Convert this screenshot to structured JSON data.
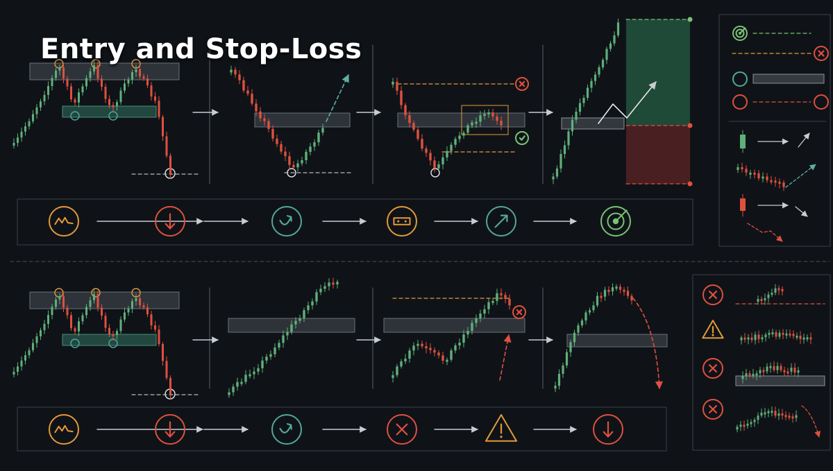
{
  "title": "Entry and Stop-Loss",
  "colors": {
    "background": "#0f1318",
    "bull": "#5fb07a",
    "bear": "#e0503f",
    "zone_fill": "#3a3f45",
    "support_zone": "#2e6b5a",
    "entry_line": "#e39a3a",
    "teal_icon": "#53a89a",
    "green_icon": "#7cc275",
    "target_fill": "#1f4a37",
    "stop_fill": "#4a1f22",
    "panel_border": "#3b4148",
    "arrow": "#c8cdd2"
  },
  "top_flow_icons": [
    {
      "name": "triple-top-icon",
      "color": "#e39a3a"
    },
    {
      "name": "down-arrow-icon",
      "color": "#e0503f"
    },
    {
      "name": "rebound-arrow-icon",
      "color": "#53a89a"
    },
    {
      "name": "range-box-icon",
      "color": "#e39a3a"
    },
    {
      "name": "up-arrow-icon",
      "color": "#53a89a"
    },
    {
      "name": "target-icon",
      "color": "#7cc275"
    }
  ],
  "bottom_flow_icons": [
    {
      "name": "triple-top-icon",
      "color": "#e39a3a"
    },
    {
      "name": "down-arrow-icon",
      "color": "#e0503f"
    },
    {
      "name": "rebound-arrow-icon",
      "color": "#53a89a"
    },
    {
      "name": "cross-icon",
      "color": "#e0503f"
    },
    {
      "name": "warning-icon",
      "color": "#e39a3a"
    },
    {
      "name": "down-arrow-icon",
      "color": "#e0503f"
    }
  ],
  "legend_top": [
    {
      "name": "target-icon",
      "line": "green-dashed"
    },
    {
      "name": "cross-icon",
      "line": "orange-dashed"
    },
    {
      "name": "teal-circle-icon",
      "line": "grey-bar"
    },
    {
      "name": "red-circle-icon",
      "line": "red-dashed"
    }
  ],
  "legend_bottom": [
    {
      "name": "cross-icon"
    },
    {
      "name": "warning-icon"
    },
    {
      "name": "cross-icon"
    },
    {
      "name": "cross-icon"
    }
  ]
}
